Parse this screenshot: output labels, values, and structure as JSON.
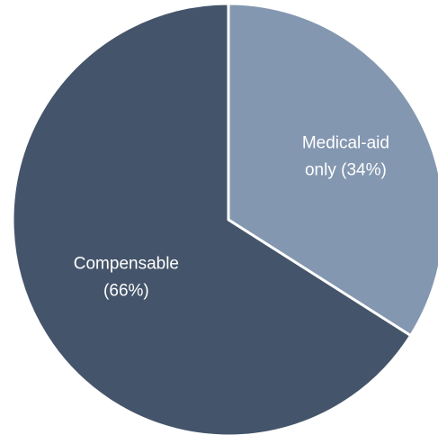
{
  "chart_data": {
    "type": "pie",
    "title": "",
    "legend": "none",
    "slices": [
      {
        "label": "Medical-aid only",
        "value": 34,
        "label_lines": [
          "Medical-aid",
          "only (34%)"
        ],
        "color": "#8497b0"
      },
      {
        "label": "Compensable",
        "value": 66,
        "label_lines": [
          "Compensable",
          "(66%)"
        ],
        "color": "#44546a"
      }
    ]
  },
  "colors": {
    "background": "#ffffff",
    "separator": "#ffffff",
    "label_text": "#ffffff"
  }
}
